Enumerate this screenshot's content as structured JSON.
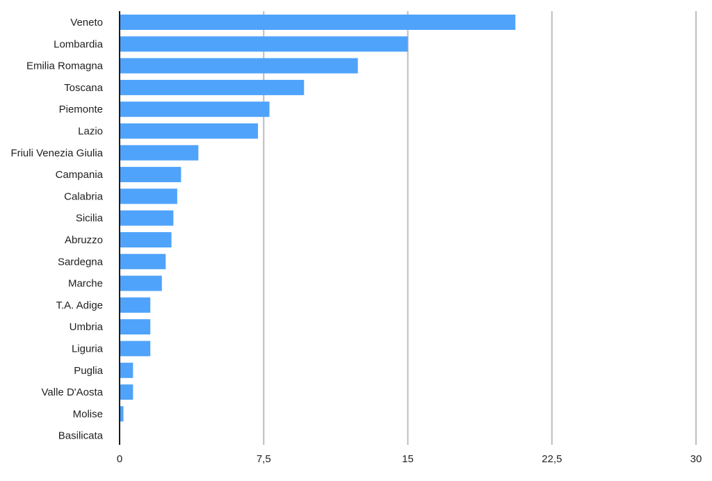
{
  "chart_data": {
    "type": "bar",
    "orientation": "horizontal",
    "categories": [
      "Veneto",
      "Lombardia",
      "Emilia Romagna",
      "Toscana",
      "Piemonte",
      "Lazio",
      "Friuli Venezia Giulia",
      "Campania",
      "Calabria",
      "Sicilia",
      "Abruzzo",
      "Sardegna",
      "Marche",
      "T.A. Adige",
      "Umbria",
      "Liguria",
      "Puglia",
      "Valle D'Aosta",
      "Molise",
      "Basilicata"
    ],
    "values": [
      20.6,
      15.0,
      12.4,
      9.6,
      7.8,
      7.2,
      4.1,
      3.2,
      3.0,
      2.8,
      2.7,
      2.4,
      2.2,
      1.6,
      1.6,
      1.6,
      0.7,
      0.7,
      0.2,
      0
    ],
    "xlim": [
      0,
      30
    ],
    "ticks": [
      0,
      7.5,
      15,
      22.5,
      30
    ],
    "tick_labels": [
      "0",
      "7,5",
      "15",
      "22,5",
      "30"
    ],
    "grid": true,
    "title": "",
    "xlabel": "",
    "ylabel": "",
    "colors": {
      "bar": "#4fa3fb",
      "grid": "#bdbdbd",
      "axis": "#1a1a1a",
      "text": "#1f1f1f"
    }
  }
}
